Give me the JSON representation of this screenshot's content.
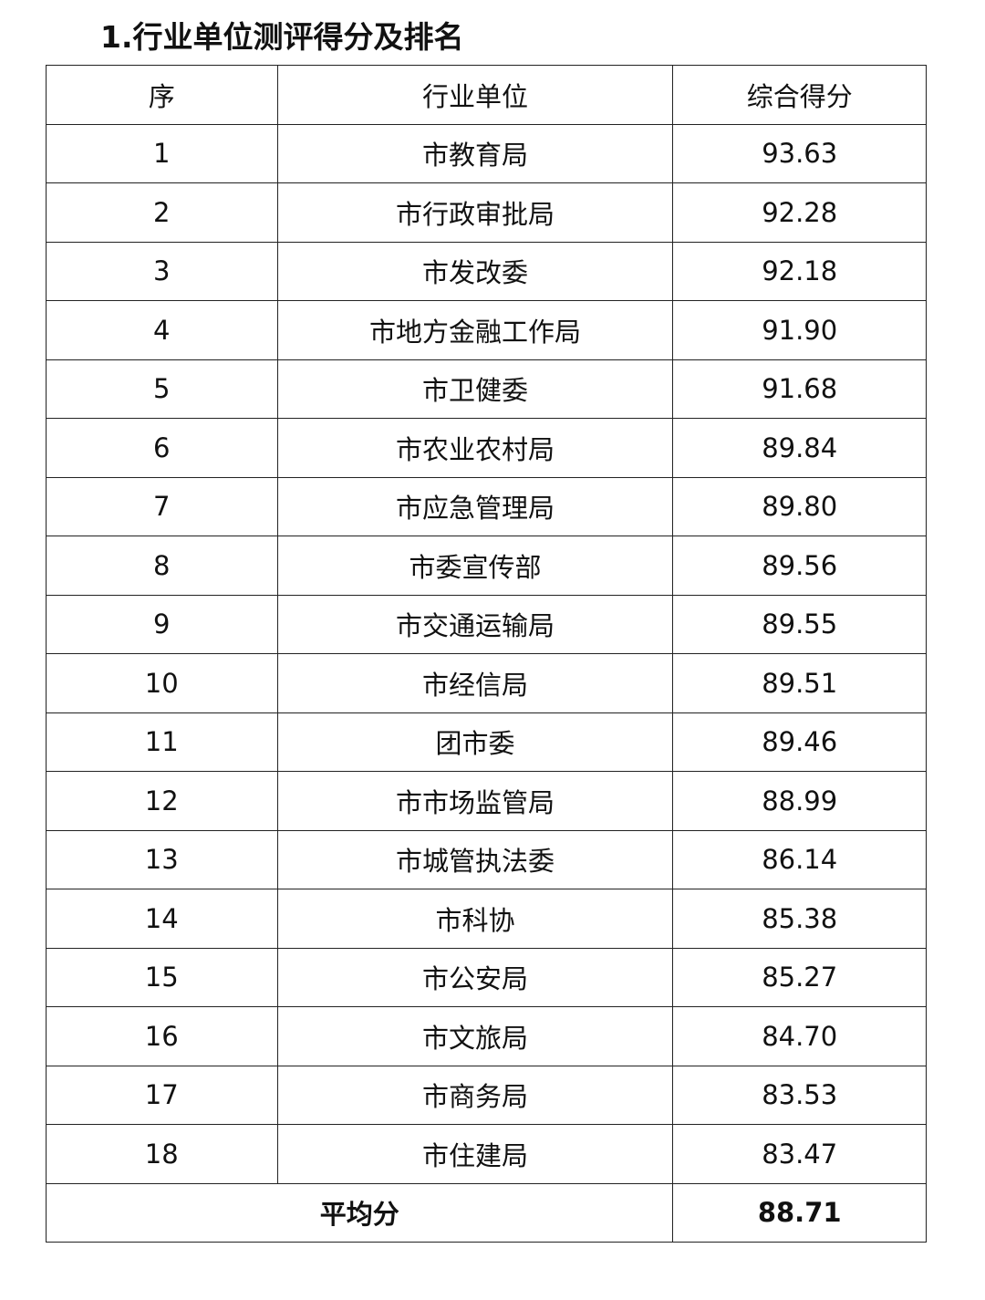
{
  "title": "1.行业单位测评得分及排名",
  "table": {
    "headers": [
      "序",
      "行业单位",
      "综合得分"
    ],
    "rows": [
      [
        "1",
        "市教育局",
        "93.63"
      ],
      [
        "2",
        "市行政审批局",
        "92.28"
      ],
      [
        "3",
        "市发改委",
        "92.18"
      ],
      [
        "4",
        "市地方金融工作局",
        "91.90"
      ],
      [
        "5",
        "市卫健委",
        "91.68"
      ],
      [
        "6",
        "市农业农村局",
        "89.84"
      ],
      [
        "7",
        "市应急管理局",
        "89.80"
      ],
      [
        "8",
        "市委宣传部",
        "89.56"
      ],
      [
        "9",
        "市交通运输局",
        "89.55"
      ],
      [
        "10",
        "市经信局",
        "89.51"
      ],
      [
        "11",
        "团市委",
        "89.46"
      ],
      [
        "12",
        "市市场监管局",
        "88.99"
      ],
      [
        "13",
        "市城管执法委",
        "86.14"
      ],
      [
        "14",
        "市科协",
        "85.38"
      ],
      [
        "15",
        "市公安局",
        "85.27"
      ],
      [
        "16",
        "市文旅局",
        "84.70"
      ],
      [
        "17",
        "市商务局",
        "83.53"
      ],
      [
        "18",
        "市住建局",
        "83.47"
      ]
    ],
    "average_label": "平均分",
    "average_value": "88.71"
  }
}
